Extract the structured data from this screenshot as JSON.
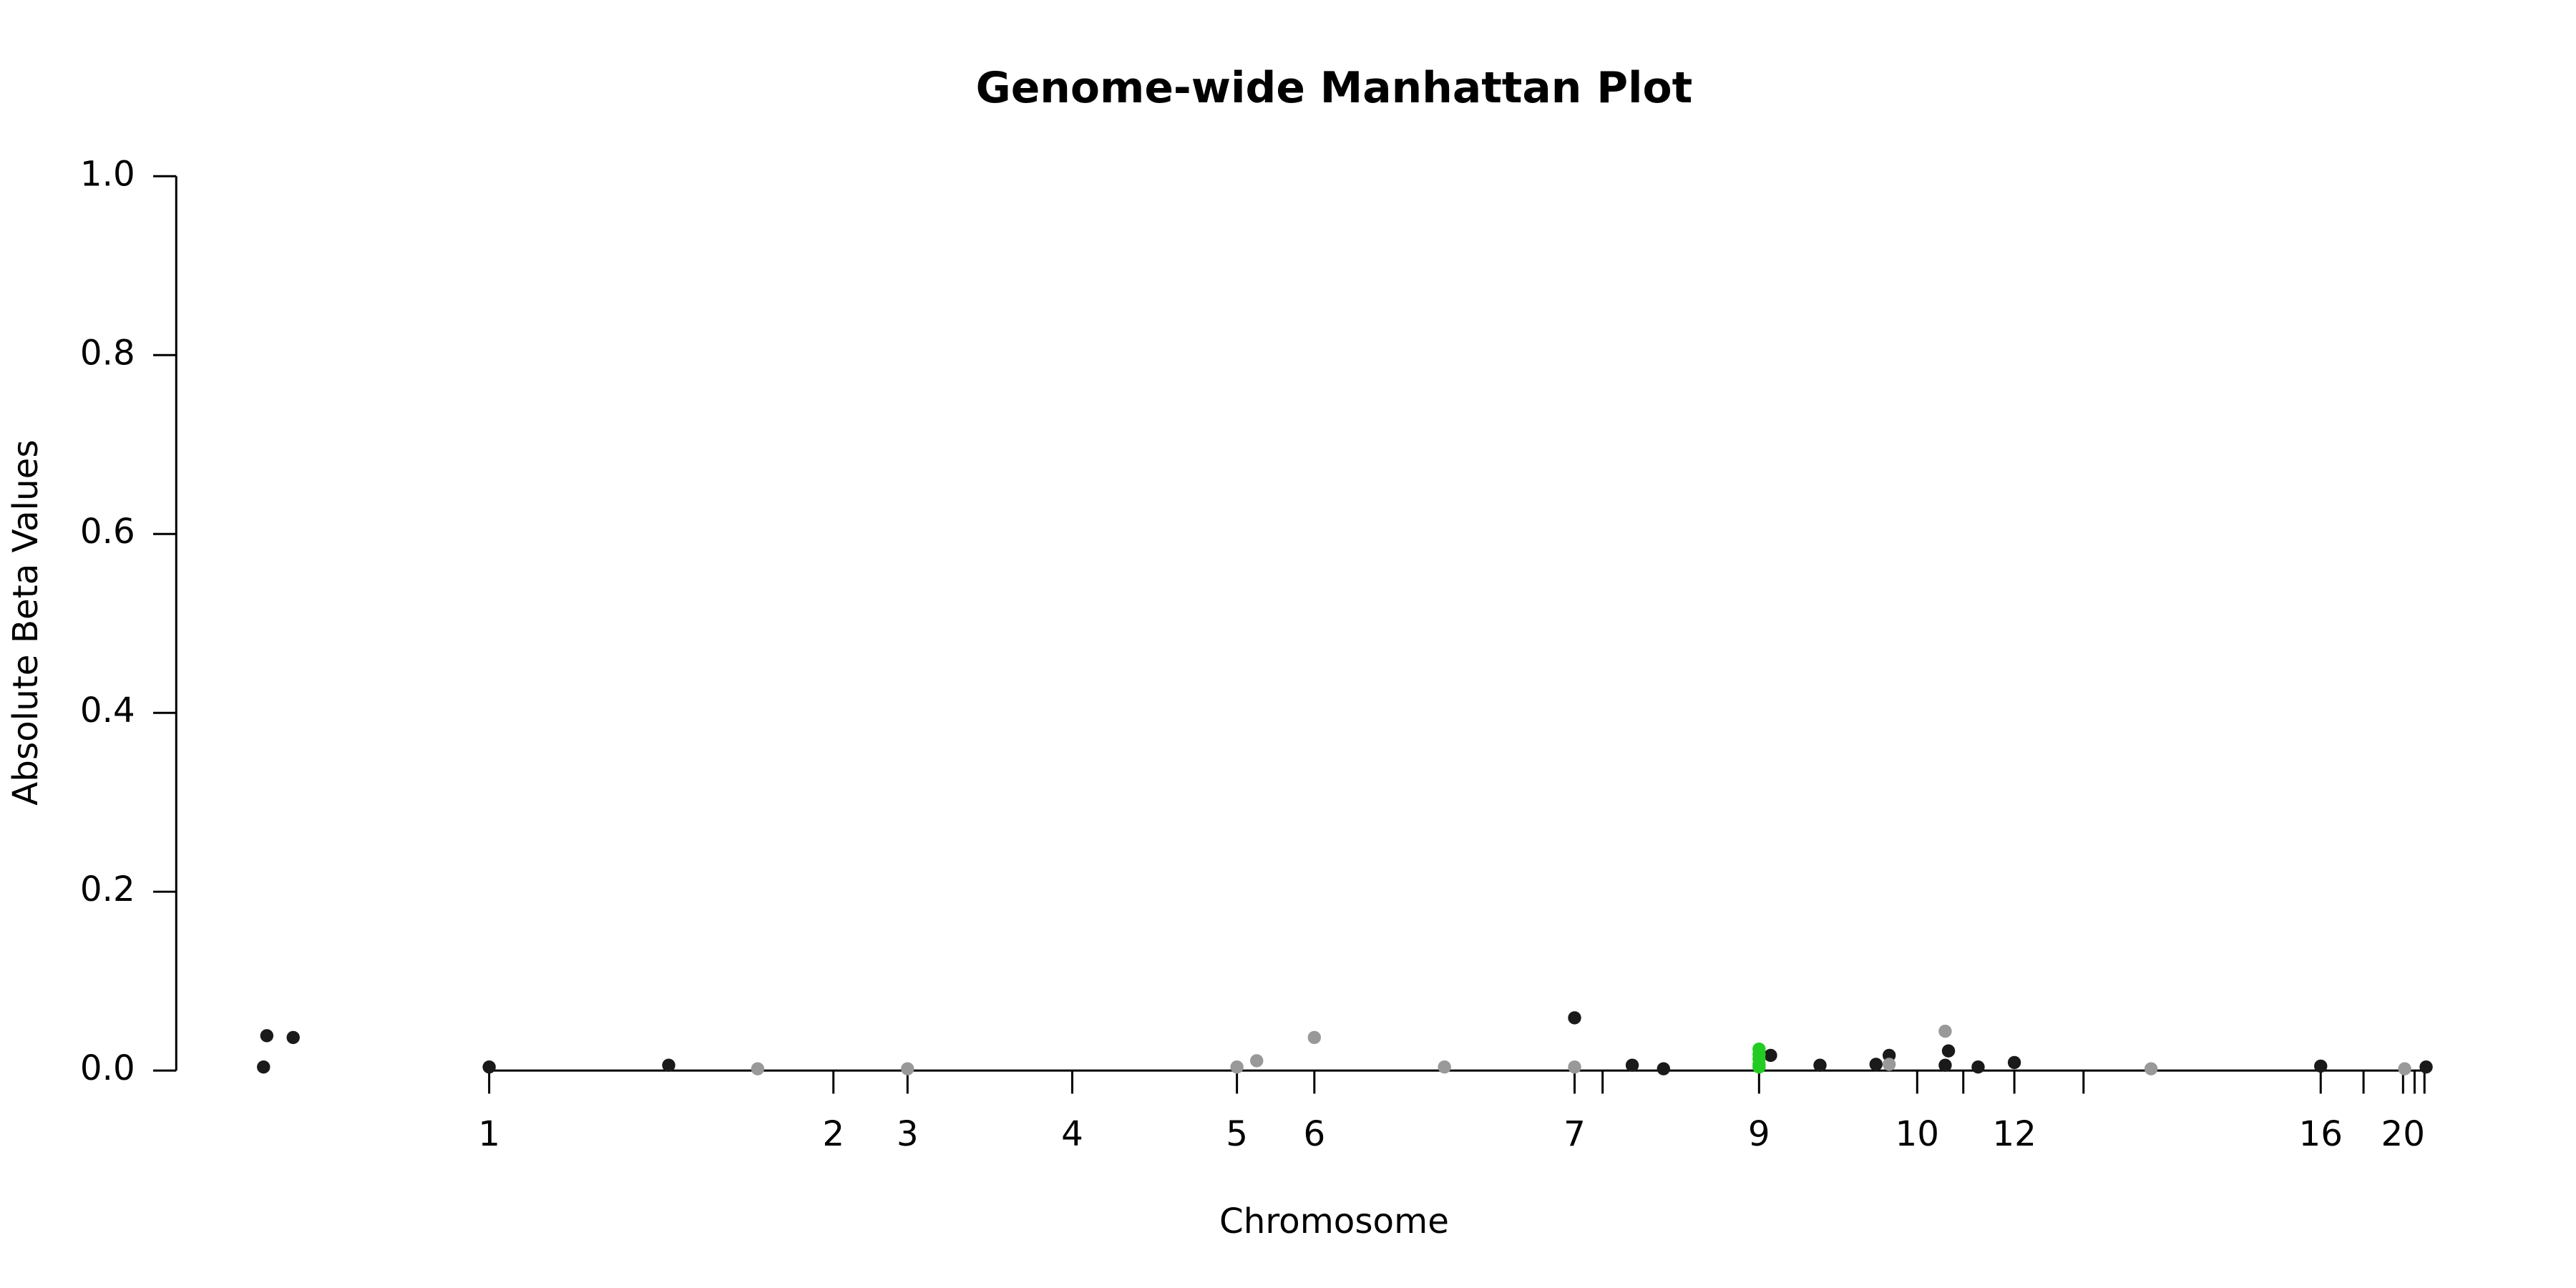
{
  "chart_data": {
    "type": "scatter",
    "title": "Genome-wide Manhattan Plot",
    "x_label": "Chromosome",
    "y_label": "Absolute Beta Values",
    "xlim": [
      0,
      1400
    ],
    "ylim": [
      0,
      1
    ],
    "yticks": [
      {
        "value": 0,
        "label": "0.0"
      },
      0.2,
      0.4,
      0.6,
      0.8,
      {
        "value": 1,
        "label": "1.0"
      }
    ],
    "xticks": [
      {
        "value": 190,
        "label": "1"
      },
      {
        "value": 399,
        "label": "2"
      },
      {
        "value": 444,
        "label": "3"
      },
      {
        "value": 544,
        "label": "4"
      },
      {
        "value": 644,
        "label": "5"
      },
      {
        "value": 691,
        "label": "6"
      },
      {
        "value": 849,
        "label": "7"
      },
      {
        "value": 866,
        "label": null
      },
      {
        "value": 961,
        "label": "9"
      },
      {
        "value": 1057,
        "label": "10"
      },
      {
        "value": 1085,
        "label": null
      },
      {
        "value": 1116,
        "label": "12"
      },
      {
        "value": 1158,
        "label": null
      },
      {
        "value": 1302,
        "label": "16"
      },
      {
        "value": 1328,
        "label": null
      },
      {
        "value": 1352,
        "label": "20"
      },
      {
        "value": 1359,
        "label": null
      },
      {
        "value": 1365,
        "label": null
      }
    ],
    "series": [
      {
        "color": "#1a1a1a",
        "x": [
          53,
          55,
          71,
          190,
          299,
          849,
          884,
          903,
          968,
          998,
          1032,
          1040,
          1074,
          1076,
          1094,
          1116,
          1302,
          1366
        ],
        "values": [
          0.004,
          0.039,
          0.037,
          0.004,
          0.006,
          0.059,
          0.006,
          0.002,
          0.017,
          0.006,
          0.007,
          0.017,
          0.006,
          0.022,
          0.004,
          0.009,
          0.005,
          0.004
        ]
      },
      {
        "color": "#999999",
        "x": [
          353,
          444,
          644,
          656,
          691,
          770,
          849,
          1040,
          1074,
          1199,
          1353
        ],
        "values": [
          0.002,
          0.002,
          0.004,
          0.011,
          0.037,
          0.004,
          0.004,
          0.007,
          0.044,
          0.002,
          0.002
        ]
      },
      {
        "color": "#22cc22",
        "x": [
          961,
          961,
          961,
          961,
          961
        ],
        "values": [
          0.024,
          0.018,
          0.013,
          0.007,
          0.004
        ]
      }
    ]
  }
}
